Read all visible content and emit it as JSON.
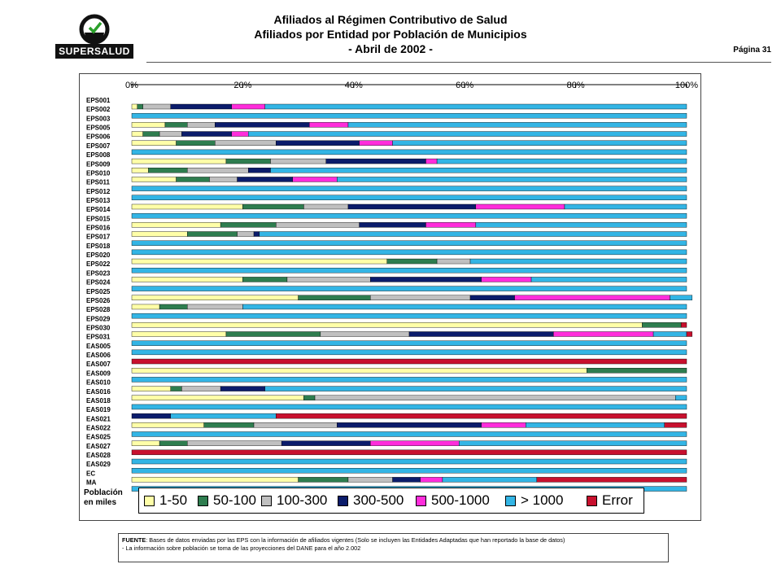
{
  "header": {
    "logo_text": "SUPERSALUD",
    "title1": "Afiliados al Régimen Contributivo de Salud",
    "title2": "Afiliados por Entidad por Población de Municipios",
    "title3": "- Abril de 2002 -",
    "page": "Página 31"
  },
  "legend": {
    "title_line1": "Población",
    "title_line2": "en miles",
    "items": [
      {
        "label": "1-50",
        "color": "#ffffa8"
      },
      {
        "label": "50-100",
        "color": "#2e7d4f"
      },
      {
        "label": "100-300",
        "color": "#c0c0c0"
      },
      {
        "label": "300-500",
        "color": "#0b1c6b"
      },
      {
        "label": "500-1000",
        "color": "#ff2ddb"
      },
      {
        "label": "> 1000",
        "color": "#33b5e5"
      },
      {
        "label": "Error",
        "color": "#c8102e"
      }
    ]
  },
  "footer": {
    "label": "FUENTE",
    "line1": ": Bases de datos enviadas por las EPS con la información de afiliados vigentes (Solo se incluyen las Entidades Adaptadas que han reportado la base de datos)",
    "line2": "- La información sobre población se toma de las proyecciones del DANE para el año 2.002"
  },
  "chart_data": {
    "type": "bar",
    "stacked": "100%",
    "orientation": "horizontal",
    "xlim": [
      0,
      100
    ],
    "xticks": [
      "0%",
      "20%",
      "40%",
      "60%",
      "80%",
      "100%"
    ],
    "series_names": [
      "1-50",
      "50-100",
      "100-300",
      "300-500",
      "500-1000",
      "> 1000",
      "Error"
    ],
    "categories": [
      "EPS001",
      "EPS002",
      "EPS003",
      "EPS005",
      "EPS006",
      "EPS007",
      "EPS008",
      "EPS009",
      "EPS010",
      "EPS011",
      "EPS012",
      "EPS013",
      "EPS014",
      "EPS015",
      "EPS016",
      "EPS017",
      "EPS018",
      "EPS020",
      "EPS022",
      "EPS023",
      "EPS024",
      "EPS025",
      "EPS026",
      "EPS028",
      "EPS029",
      "EPS030",
      "EPS031",
      "EAS005",
      "EAS006",
      "EAS007",
      "EAS009",
      "EAS010",
      "EAS016",
      "EAS018",
      "EAS019",
      "EAS021",
      "EAS022",
      "EAS025",
      "EAS027",
      "EAS028",
      "EAS029",
      "EC",
      "MA"
    ],
    "values": [
      [
        1,
        1,
        5,
        11,
        6,
        76,
        0
      ],
      [
        0,
        0,
        0,
        0,
        0,
        100,
        0
      ],
      [
        6,
        4,
        5,
        17,
        7,
        61,
        0
      ],
      [
        2,
        3,
        4,
        9,
        3,
        79,
        0
      ],
      [
        8,
        7,
        11,
        15,
        6,
        53,
        0
      ],
      [
        0,
        0,
        0,
        0,
        0,
        100,
        0
      ],
      [
        17,
        8,
        10,
        18,
        2,
        45,
        0
      ],
      [
        3,
        7,
        11,
        4,
        0,
        75,
        0
      ],
      [
        8,
        6,
        5,
        10,
        8,
        63,
        0
      ],
      [
        0,
        0,
        0,
        0,
        0,
        100,
        0
      ],
      [
        0,
        0,
        0,
        0,
        0,
        100,
        0
      ],
      [
        20,
        11,
        8,
        23,
        16,
        22,
        0
      ],
      [
        0,
        0,
        0,
        0,
        0,
        100,
        0
      ],
      [
        16,
        10,
        15,
        12,
        9,
        38,
        0
      ],
      [
        10,
        9,
        3,
        1,
        0,
        77,
        0
      ],
      [
        0,
        0,
        0,
        0,
        0,
        100,
        0
      ],
      [
        0,
        0,
        0,
        0,
        0,
        100,
        0
      ],
      [
        46,
        9,
        6,
        0,
        0,
        39,
        0
      ],
      [
        0,
        0,
        0,
        0,
        0,
        100,
        0
      ],
      [
        20,
        8,
        15,
        20,
        9,
        28,
        0
      ],
      [
        0,
        0,
        0,
        0,
        0,
        100,
        0
      ],
      [
        30,
        13,
        18,
        8,
        28,
        4,
        0
      ],
      [
        5,
        5,
        10,
        0,
        0,
        80,
        0
      ],
      [
        0,
        0,
        0,
        0,
        0,
        100,
        0
      ],
      [
        92,
        7,
        0,
        0,
        0,
        0,
        1
      ],
      [
        17,
        17,
        16,
        26,
        18,
        6,
        1
      ],
      [
        0,
        0,
        0,
        0,
        0,
        100,
        0
      ],
      [
        0,
        0,
        0,
        0,
        0,
        100,
        0
      ],
      [
        0,
        0,
        0,
        0,
        0,
        0,
        100
      ],
      [
        82,
        18,
        0,
        0,
        0,
        0,
        0
      ],
      [
        0,
        0,
        0,
        0,
        0,
        100,
        0
      ],
      [
        7,
        2,
        7,
        8,
        0,
        76,
        0
      ],
      [
        31,
        2,
        65,
        0,
        0,
        2,
        0
      ],
      [
        0,
        0,
        0,
        0,
        0,
        100,
        0
      ],
      [
        0,
        0,
        0,
        7,
        0,
        19,
        74
      ],
      [
        13,
        9,
        15,
        26,
        8,
        25,
        4
      ],
      [
        0,
        0,
        0,
        0,
        0,
        100,
        0
      ],
      [
        5,
        5,
        17,
        16,
        16,
        41,
        0
      ],
      [
        0,
        0,
        0,
        0,
        0,
        0,
        100
      ],
      [
        0,
        0,
        0,
        0,
        0,
        100,
        0
      ],
      [
        0,
        0,
        0,
        0,
        0,
        100,
        0
      ],
      [
        30,
        9,
        8,
        5,
        4,
        17,
        27
      ],
      [
        0,
        0,
        0,
        0,
        0,
        100,
        0
      ]
    ]
  }
}
